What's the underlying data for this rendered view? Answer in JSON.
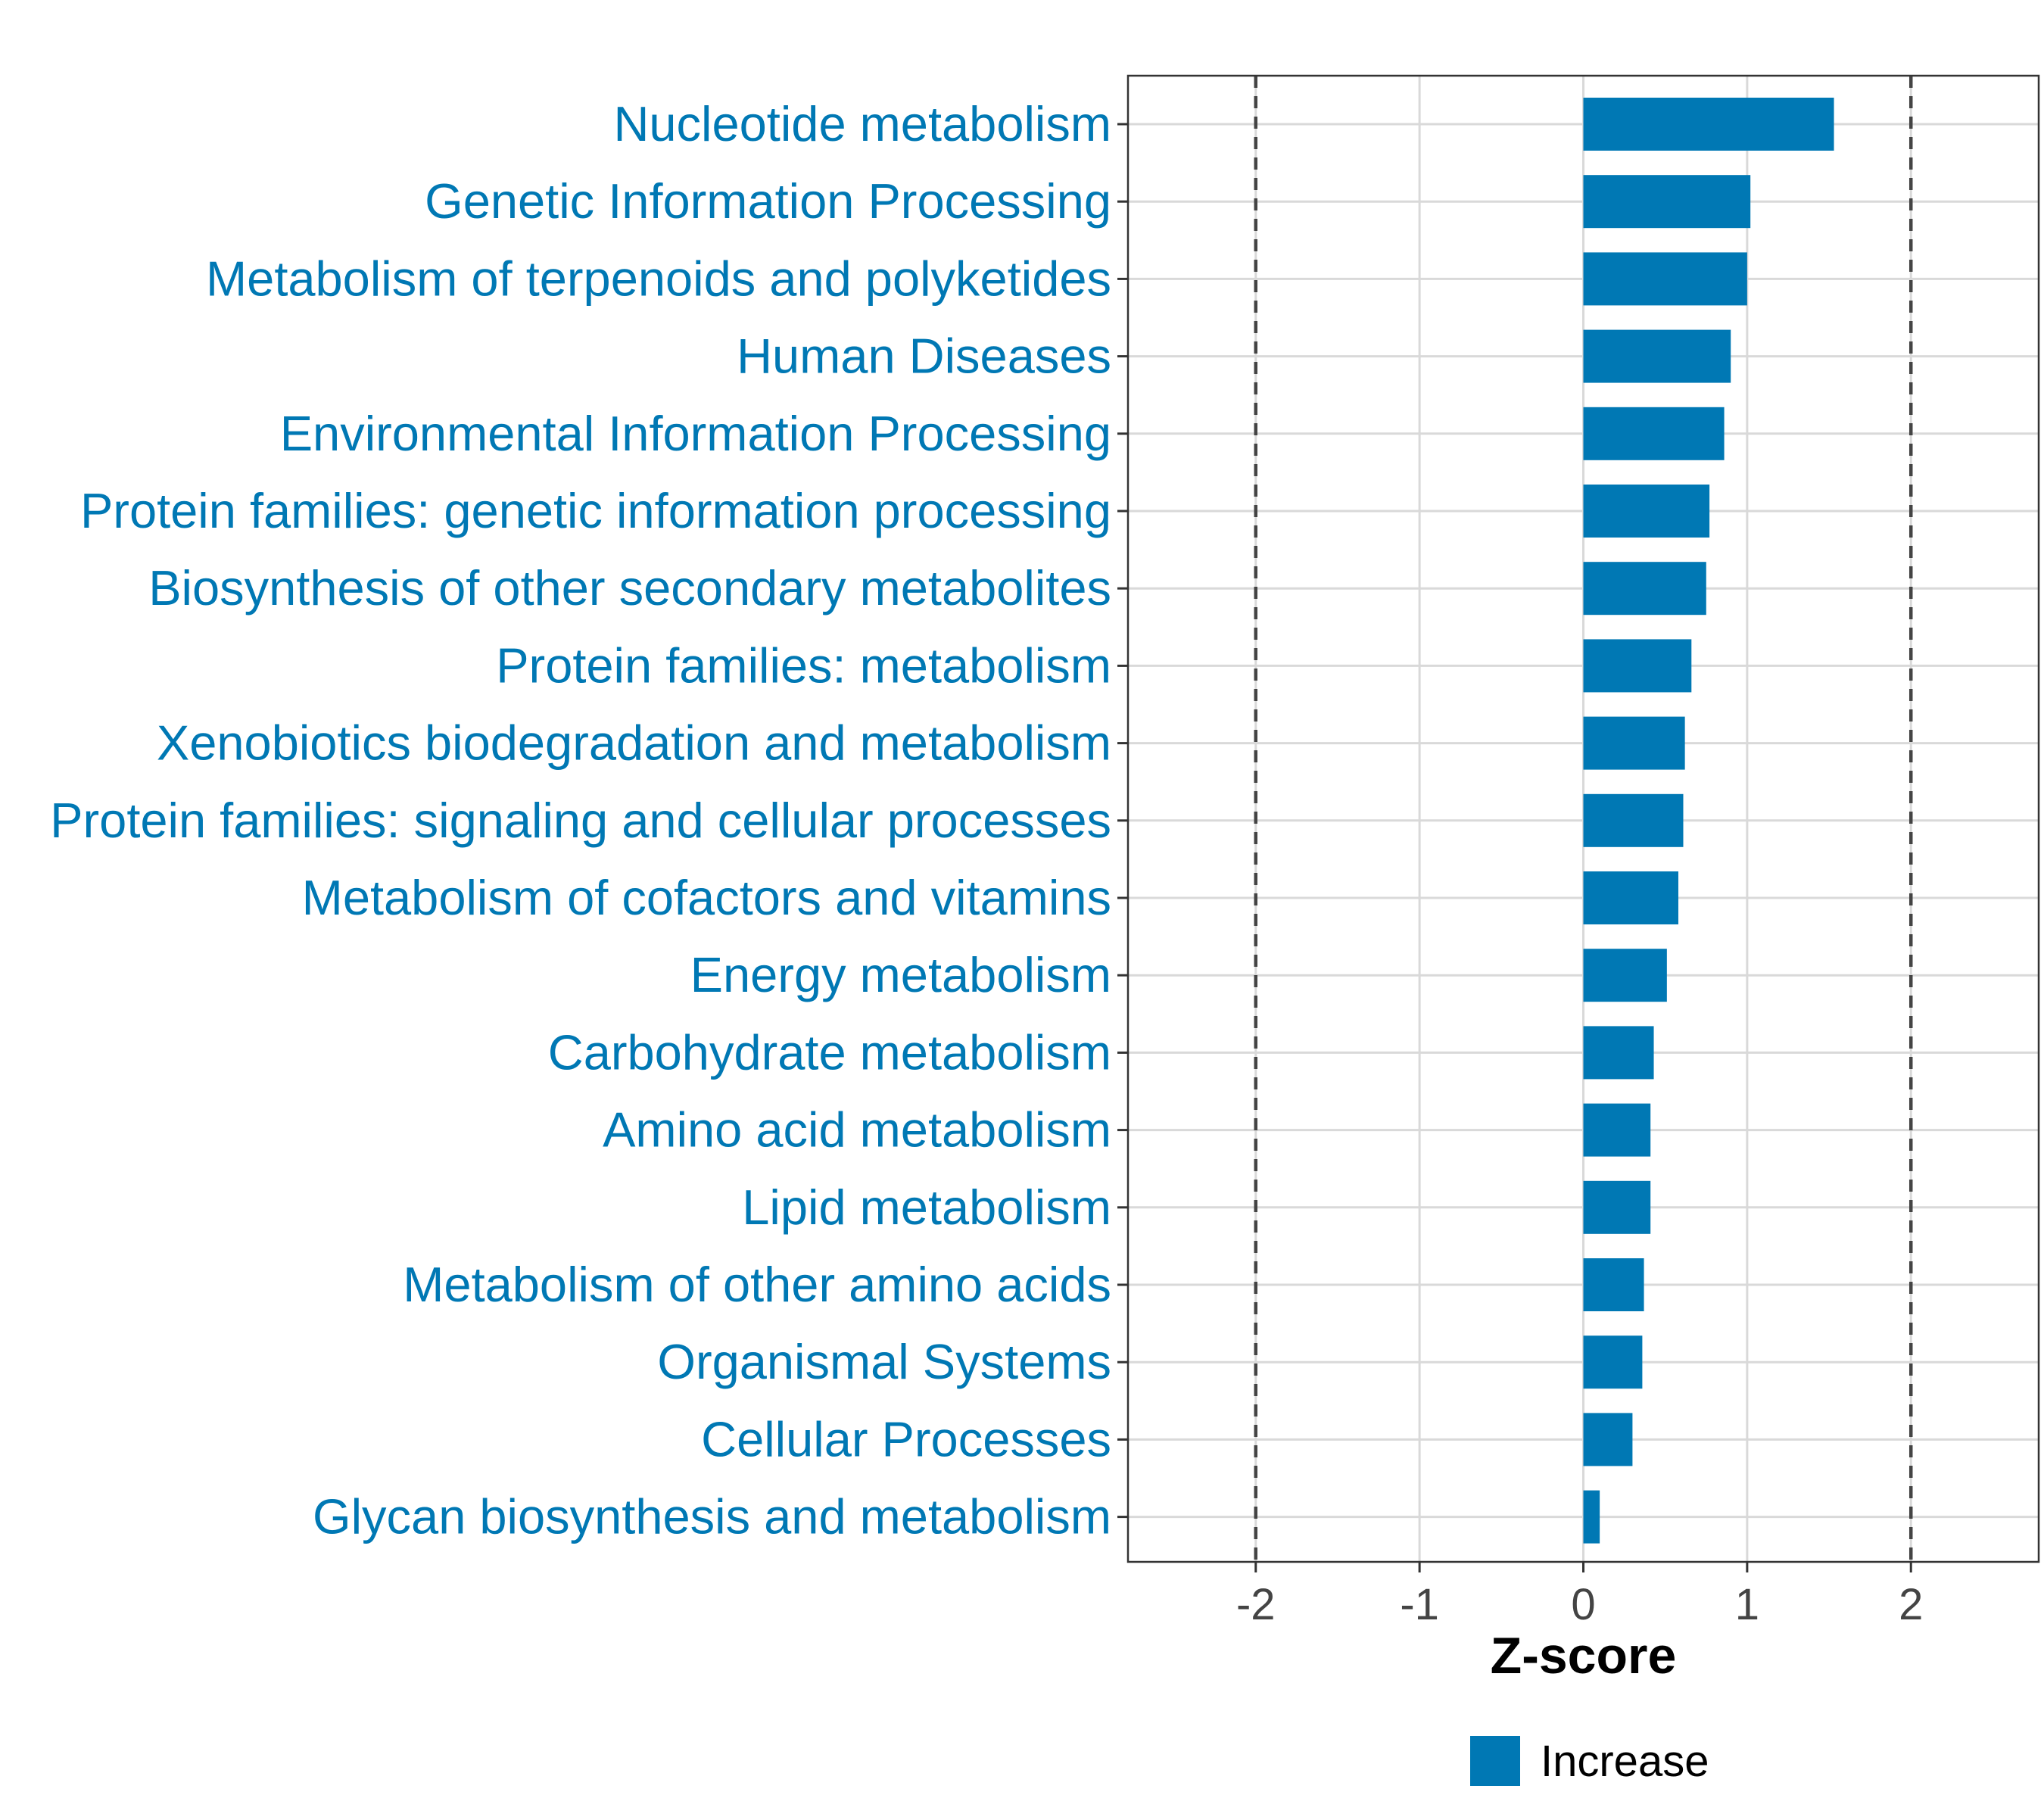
{
  "chart_data": {
    "type": "bar",
    "orientation": "horizontal",
    "categories": [
      "Nucleotide metabolism",
      "Genetic Information Processing",
      "Metabolism of terpenoids and polyketides",
      "Human Diseases",
      "Environmental Information Processing",
      "Protein families: genetic information processing",
      "Biosynthesis of other secondary metabolites",
      "Protein families: metabolism",
      "Xenobiotics biodegradation and metabolism",
      "Protein families: signaling and cellular processes",
      "Metabolism of cofactors and vitamins",
      "Energy metabolism",
      "Carbohydrate metabolism",
      "Amino acid metabolism",
      "Lipid metabolism",
      "Metabolism of other amino acids",
      "Organismal Systems",
      "Cellular Processes",
      "Glycan biosynthesis and metabolism"
    ],
    "values": [
      1.53,
      1.02,
      1.0,
      0.9,
      0.86,
      0.77,
      0.75,
      0.66,
      0.62,
      0.61,
      0.58,
      0.51,
      0.43,
      0.41,
      0.41,
      0.37,
      0.36,
      0.3,
      0.1
    ],
    "xlabel": "Z-score",
    "ylabel": "",
    "xlim": [
      -2.78,
      2.78
    ],
    "xticks": [
      -2,
      -1,
      0,
      1,
      2
    ],
    "xtick_labels": [
      "-2",
      "-1",
      "0",
      "1",
      "2"
    ],
    "reference_lines": [
      -2,
      2
    ],
    "legend": {
      "entries": [
        "Increase"
      ],
      "placement": "bottom"
    },
    "colors": {
      "bar": "#0078B4",
      "label": "#0078B4",
      "grid": "#D9D9D9",
      "ref_line": "#444444"
    },
    "grid": true
  }
}
